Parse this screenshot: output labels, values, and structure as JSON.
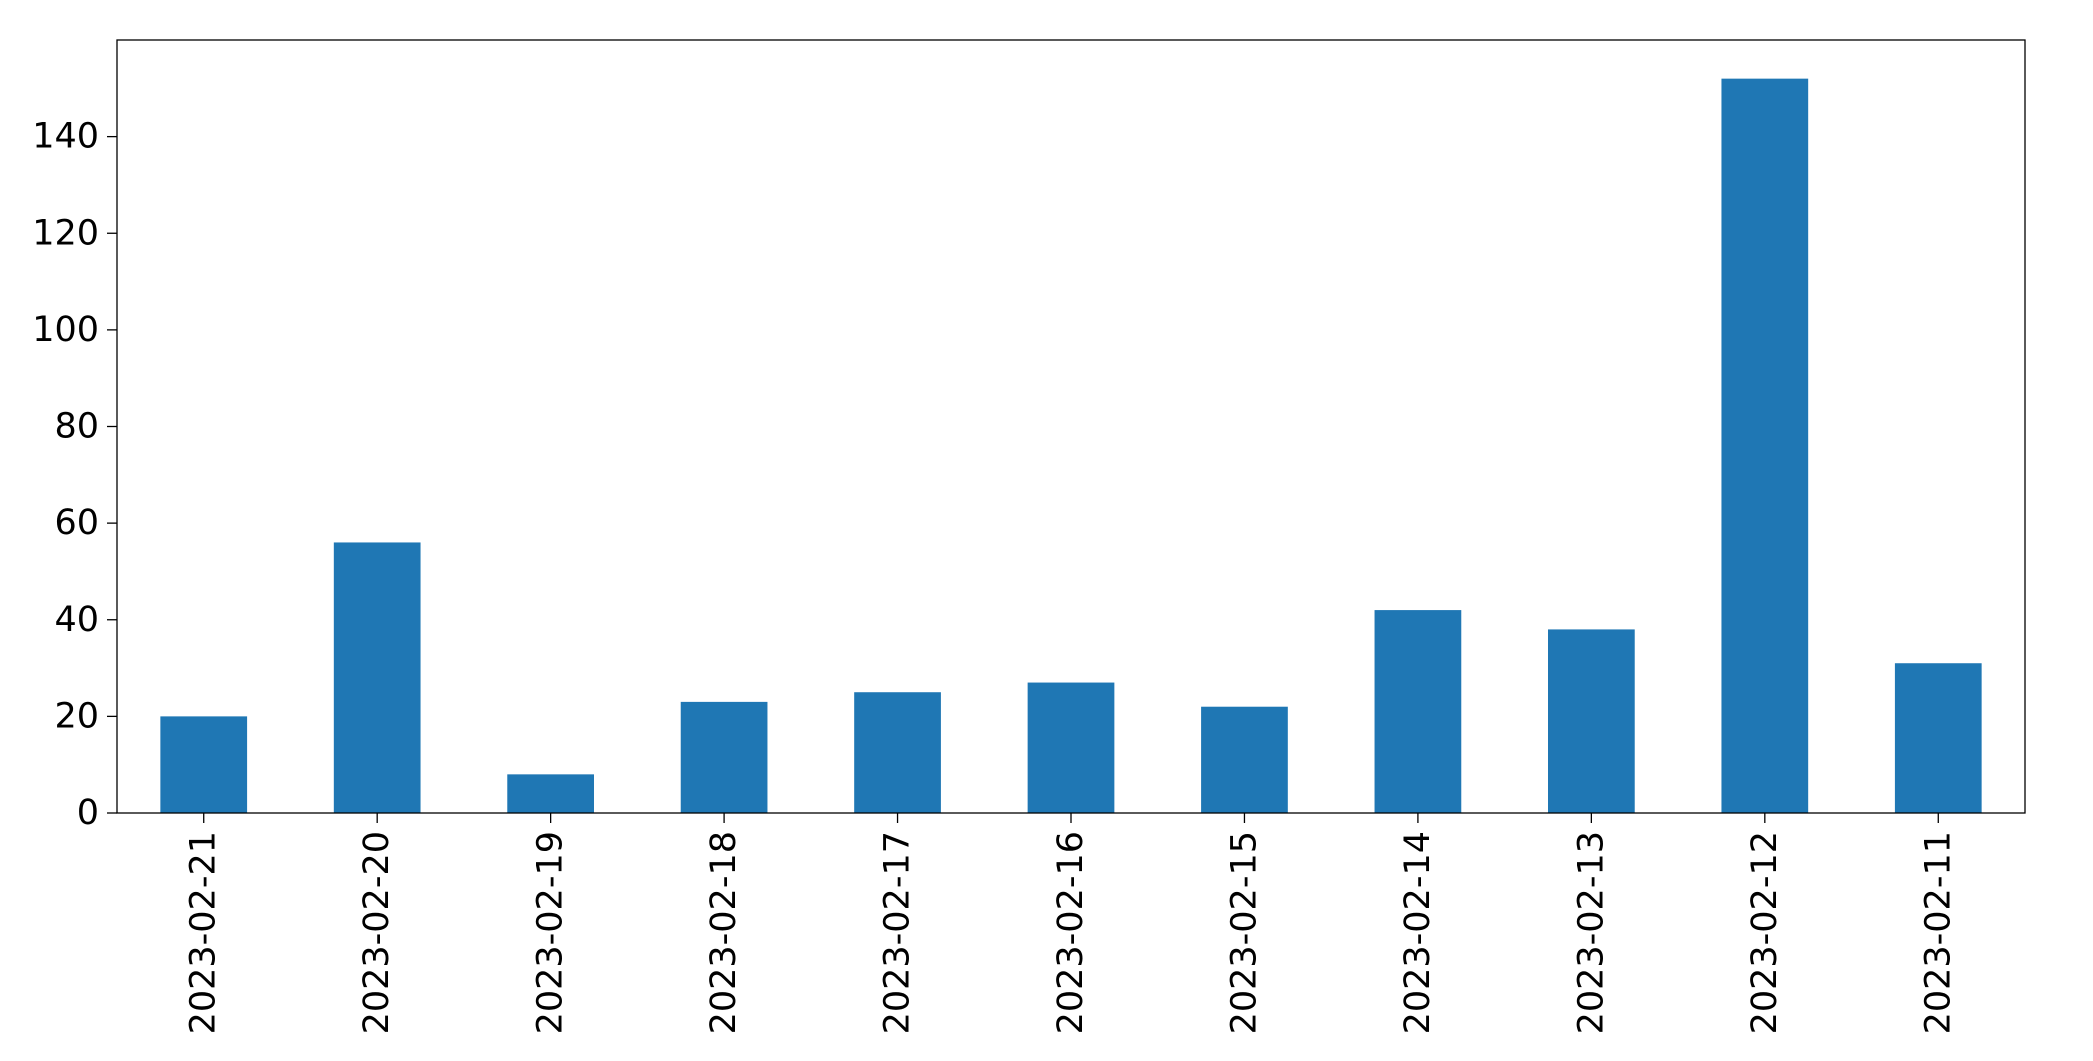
{
  "chart_data": {
    "type": "bar",
    "title": "",
    "xlabel": "",
    "ylabel": "",
    "categories": [
      "2023-02-21",
      "2023-02-20",
      "2023-02-19",
      "2023-02-18",
      "2023-02-17",
      "2023-02-16",
      "2023-02-15",
      "2023-02-14",
      "2023-02-13",
      "2023-02-12",
      "2023-02-11"
    ],
    "values": [
      20,
      56,
      8,
      23,
      25,
      27,
      22,
      42,
      38,
      152,
      31
    ],
    "ylim": [
      0,
      160
    ],
    "yticks": [
      0,
      20,
      40,
      60,
      80,
      100,
      120,
      140
    ],
    "grid": false,
    "legend": "none",
    "colors": {
      "bar": "#1f77b4",
      "axis": "#000000",
      "background": "#ffffff"
    }
  }
}
